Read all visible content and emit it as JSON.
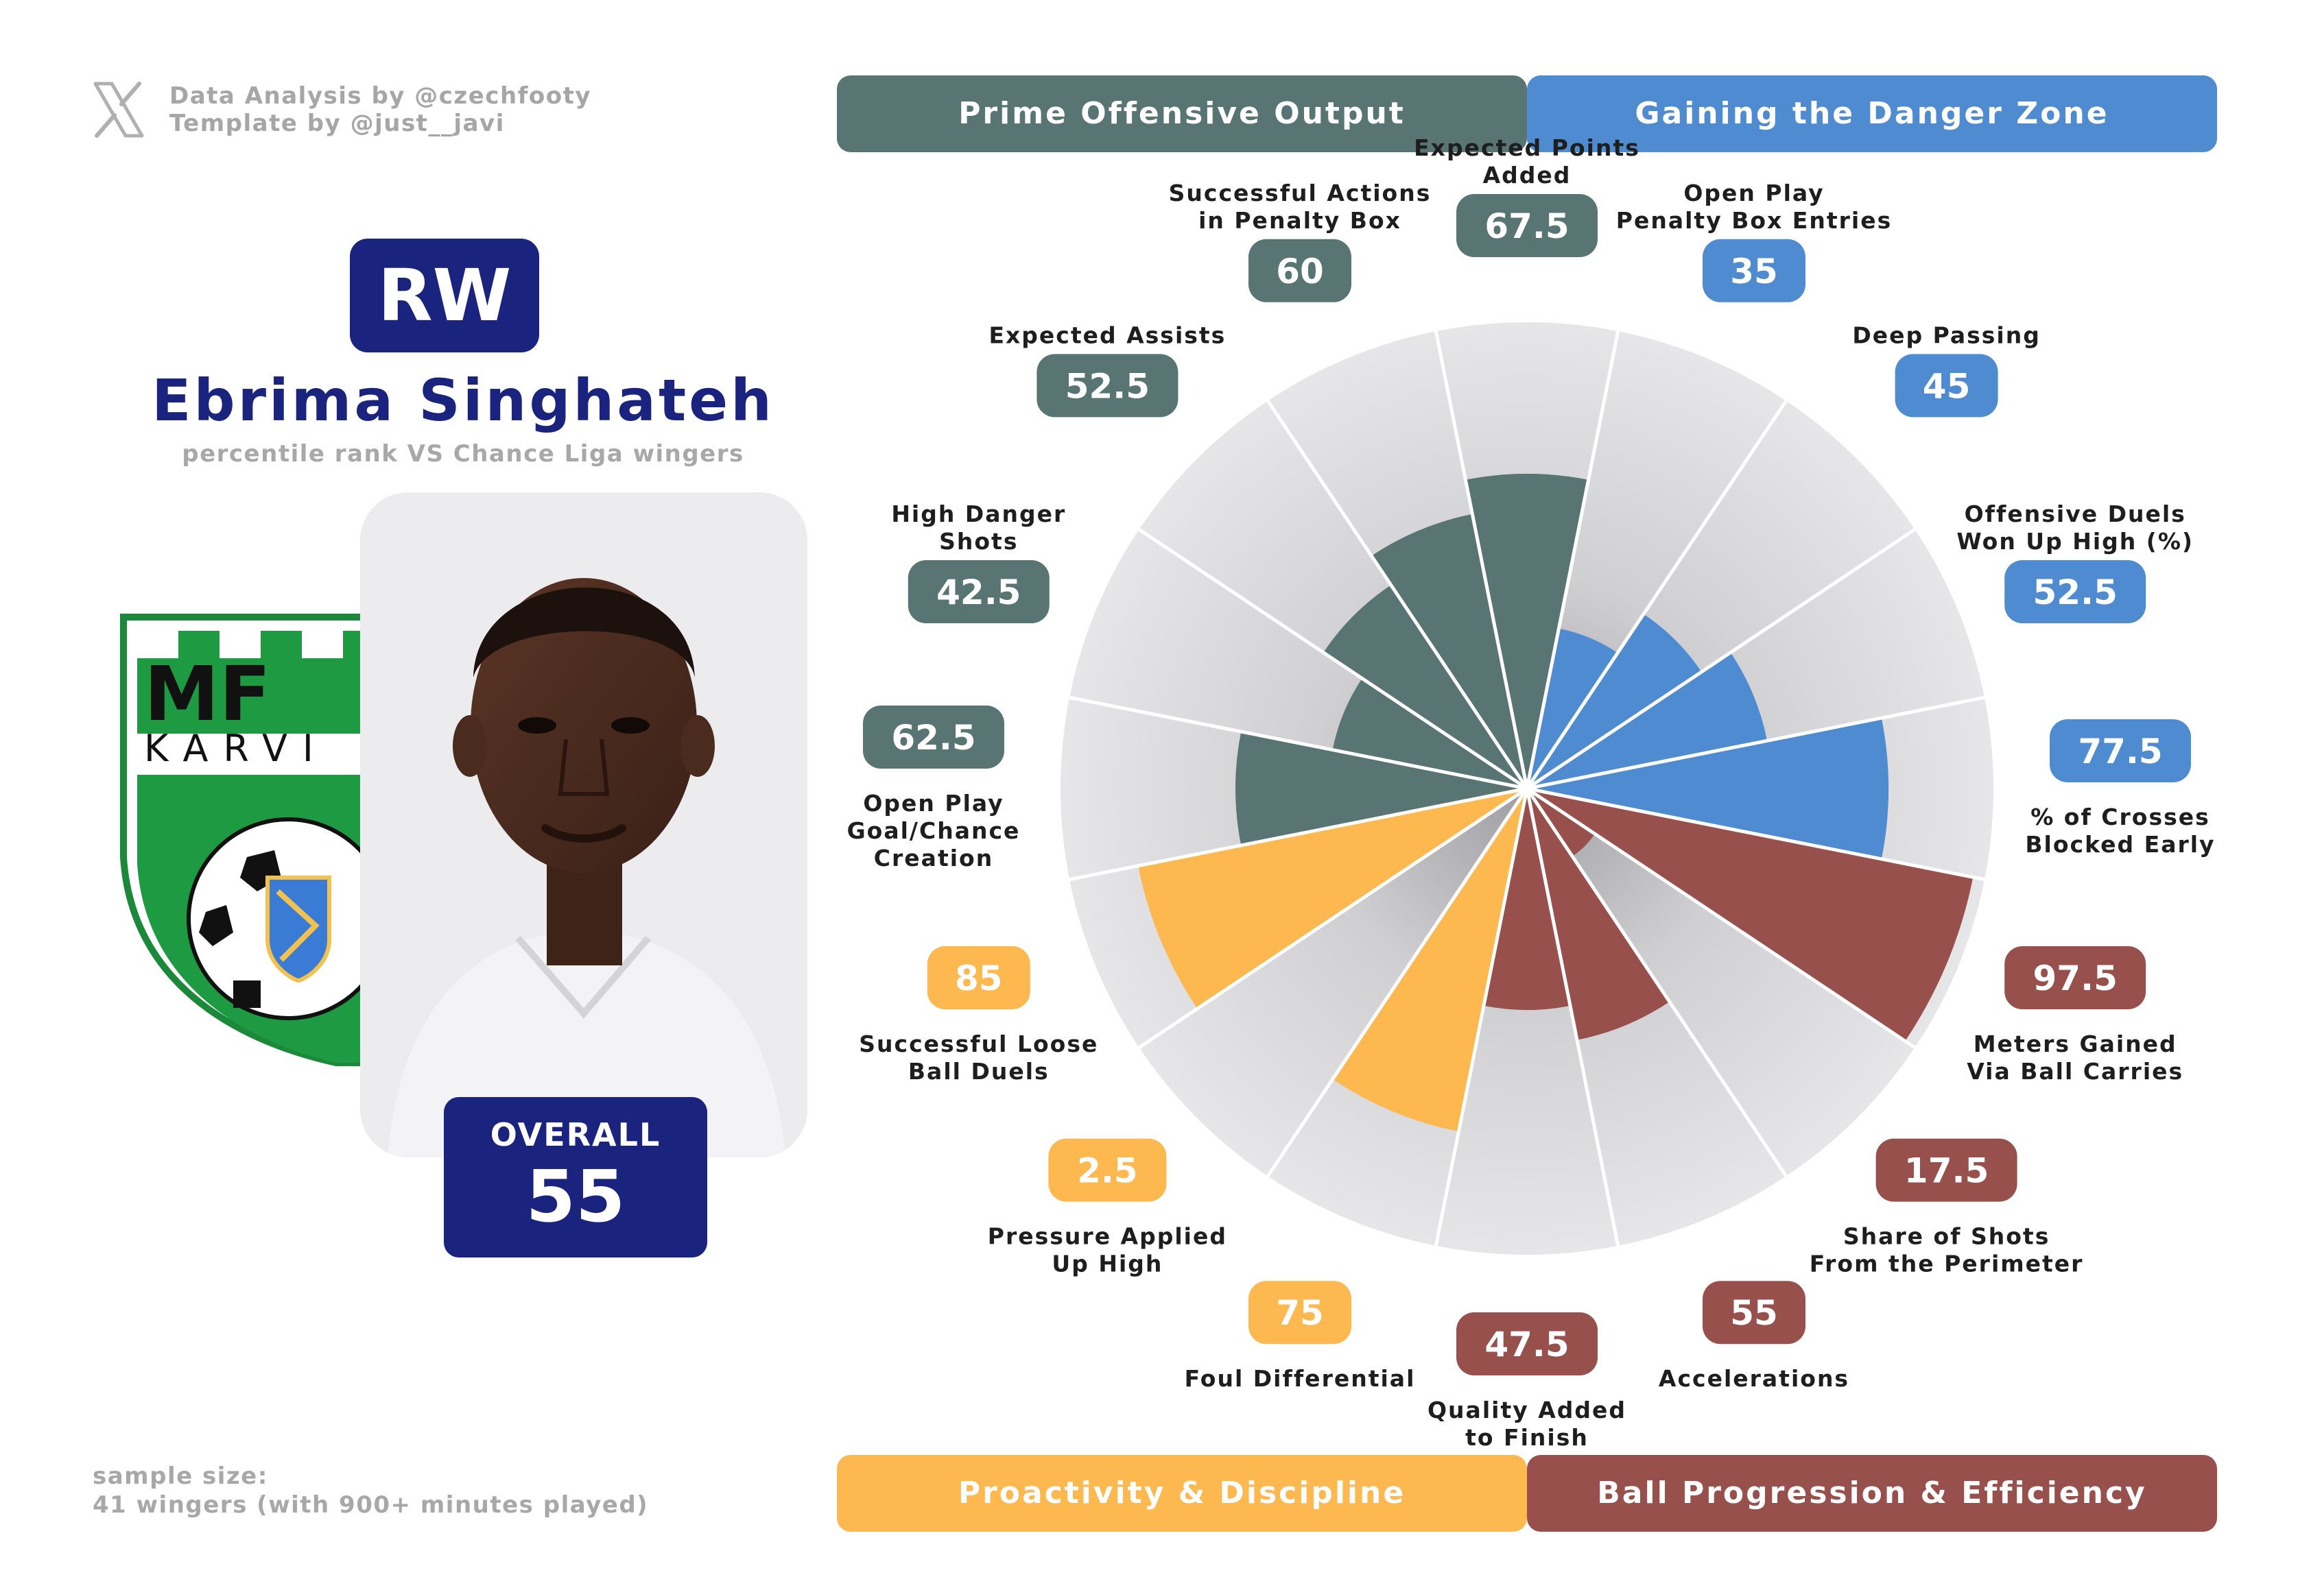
{
  "credits": {
    "line1": "Data Analysis by @czechfooty",
    "line2": "Template by @just__javi",
    "logo_icon": "x-logo-icon"
  },
  "player": {
    "position": "RW",
    "name": "Ebrima Singhateh",
    "subtitle": "percentile rank VS Chance Liga wingers",
    "overall_label": "OVERALL",
    "overall_value": "55",
    "club_crest_text_top": "MF",
    "club_crest_text_bottom": "KARVI"
  },
  "sample": {
    "line1": "sample size:",
    "line2": "41 wingers (with 900+ minutes played)"
  },
  "colors": {
    "navy": "#1a237e",
    "offensive": "#587573",
    "danger_zone": "#4f8bd0",
    "proactivity": "#fdb84f",
    "progression": "#98504c",
    "slice_bg": "#e4e4e6"
  },
  "chart_data": {
    "type": "radar-bar",
    "range": [
      0,
      100
    ],
    "categories": [
      {
        "name": "Prime Offensive Output",
        "color": "#587573"
      },
      {
        "name": "Gaining the Danger Zone",
        "color": "#4f8bd0"
      },
      {
        "name": "Proactivity & Discipline",
        "color": "#fdb84f"
      },
      {
        "name": "Ball Progression & Efficiency",
        "color": "#98504c"
      }
    ],
    "metrics": [
      {
        "label": [
          "Expected Points",
          "Added"
        ],
        "value": 67.5,
        "category": 0
      },
      {
        "label": [
          "Open Play",
          "Penalty Box Entries"
        ],
        "value": 35,
        "category": 1
      },
      {
        "label": [
          "Deep Passing"
        ],
        "value": 45,
        "category": 1
      },
      {
        "label": [
          "Offensive Duels",
          "Won Up High (%)"
        ],
        "value": 52.5,
        "category": 1
      },
      {
        "label": [
          "% of Crosses",
          "Blocked Early"
        ],
        "value": 77.5,
        "category": 1
      },
      {
        "label": [
          "Meters Gained",
          "Via Ball Carries"
        ],
        "value": 97.5,
        "category": 3
      },
      {
        "label": [
          "Share of Shots",
          "From the Perimeter"
        ],
        "value": 17.5,
        "category": 3
      },
      {
        "label": [
          "Accelerations"
        ],
        "value": 55,
        "category": 3
      },
      {
        "label": [
          "Quality Added",
          "to Finish"
        ],
        "value": 47.5,
        "category": 3
      },
      {
        "label": [
          "Foul Differential"
        ],
        "value": 75,
        "category": 2
      },
      {
        "label": [
          "Pressure Applied",
          "Up High"
        ],
        "value": 2.5,
        "category": 2
      },
      {
        "label": [
          "Successful Loose",
          "Ball Duels"
        ],
        "value": 85,
        "category": 2
      },
      {
        "label": [
          "Open Play",
          "Goal/Chance",
          "Creation"
        ],
        "value": 62.5,
        "category": 0
      },
      {
        "label": [
          "High Danger",
          "Shots"
        ],
        "value": 42.5,
        "category": 0
      },
      {
        "label": [
          "Expected Assists"
        ],
        "value": 52.5,
        "category": 0
      },
      {
        "label": [
          "Successful Actions",
          "in Penalty Box"
        ],
        "value": 60,
        "category": 0
      }
    ]
  }
}
